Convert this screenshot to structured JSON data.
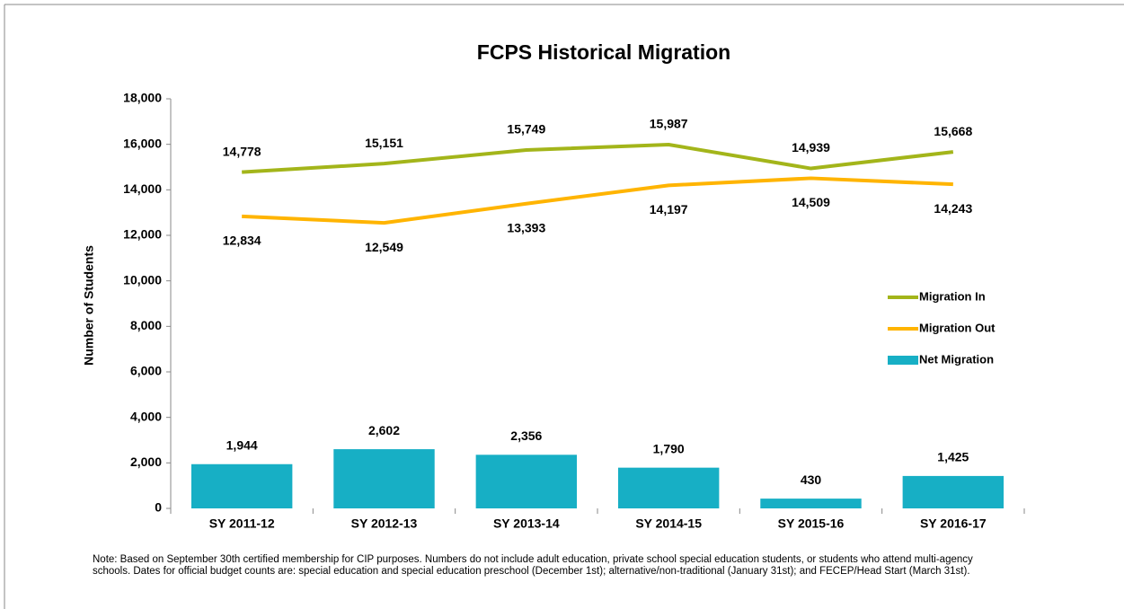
{
  "chart_data": {
    "type": "combo",
    "title": "FCPS Historical Migration",
    "y_label": "Number of Students",
    "categories": [
      "SY 2011-12",
      "SY 2012-13",
      "SY 2013-14",
      "SY 2014-15",
      "SY 2015-16",
      "SY 2016-17"
    ],
    "series": [
      {
        "name": "Migration In",
        "type": "line",
        "color": "#a3b51a",
        "values": [
          14778,
          15151,
          15749,
          15987,
          14939,
          15668
        ],
        "value_labels": [
          "14,778",
          "15,151",
          "15,749",
          "15,987",
          "14,939",
          "15,668"
        ],
        "label_position": "above"
      },
      {
        "name": "Migration Out",
        "type": "line",
        "color": "#ffb400",
        "values": [
          12834,
          12549,
          13393,
          14197,
          14509,
          14243
        ],
        "value_labels": [
          "12,834",
          "12,549",
          "13,393",
          "14,197",
          "14,509",
          "14,243"
        ],
        "label_position": "below"
      },
      {
        "name": "Net Migration",
        "type": "bar",
        "color": "#17afc5",
        "values": [
          1944,
          2602,
          2356,
          1790,
          430,
          1425
        ],
        "value_labels": [
          "1,944",
          "2,602",
          "2,356",
          "1,790",
          "430",
          "1,425"
        ],
        "label_position": "above"
      }
    ],
    "ylim": [
      0,
      18000
    ],
    "yticks": [
      0,
      {
        "value": 2000,
        "label": "2,000"
      },
      {
        "value": 4000,
        "label": "4,000"
      },
      {
        "value": 6000,
        "label": "6,000"
      },
      {
        "value": 8000,
        "label": "8,000"
      },
      {
        "value": 10000,
        "label": "10,000"
      },
      {
        "value": 12000,
        "label": "12,000"
      },
      {
        "value": 14000,
        "label": "14,000"
      },
      {
        "value": 16000,
        "label": "16,000"
      },
      {
        "value": 18000,
        "label": "18,000"
      }
    ],
    "grid": false,
    "legend": "right",
    "note": "Note: Based on September 30th certified membership for CIP purposes. Numbers do not include adult education, private school special education students, or students who attend multi-agency schools. Dates for official budget counts are: special education and special education preschool (December 1st); alternative/non-traditional (January 31st); and FECEP/Head Start (March 31st)."
  }
}
